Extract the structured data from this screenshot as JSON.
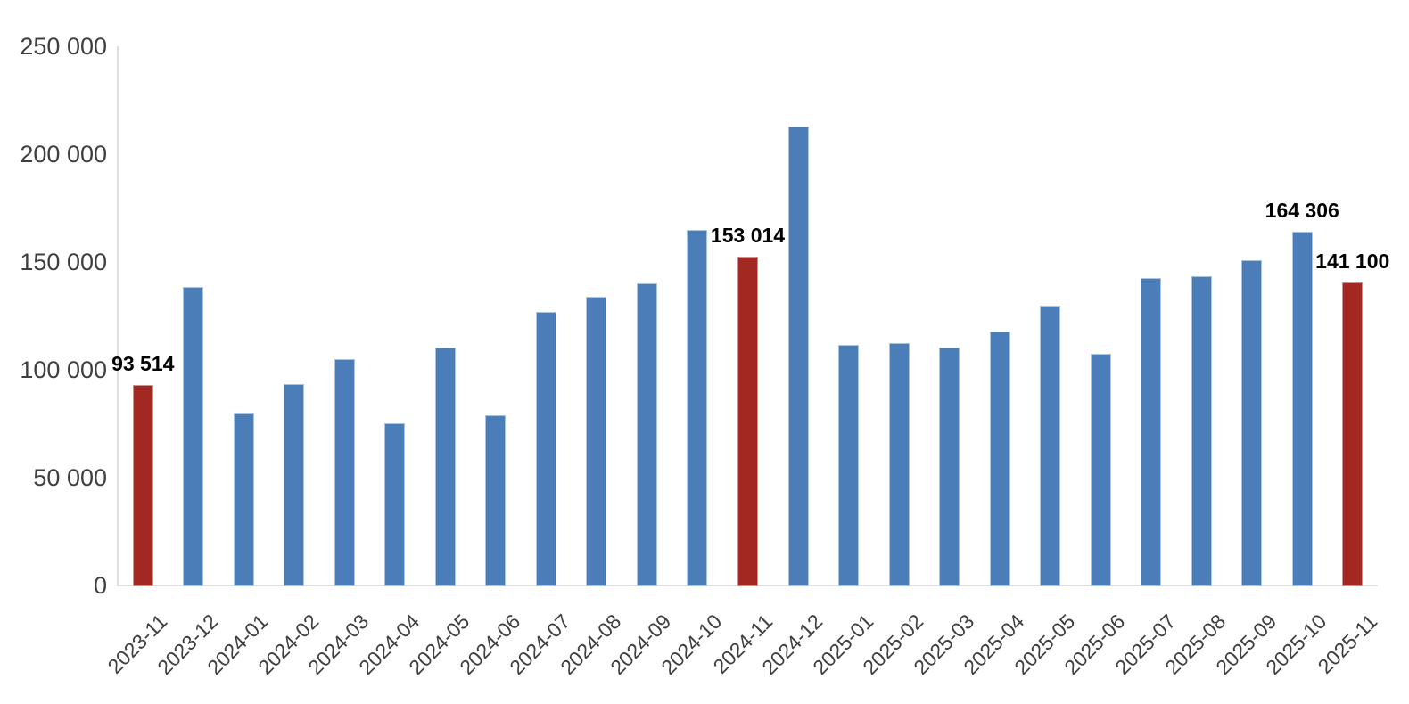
{
  "chart_data": {
    "type": "bar",
    "title": "",
    "xlabel": "",
    "ylabel": "",
    "ylim": [
      0,
      250000
    ],
    "y_tick_step": 50000,
    "y_tick_labels": [
      "250 000",
      "200 000",
      "150 000",
      "100 000",
      "50 000",
      "0"
    ],
    "grid": false,
    "legend": false,
    "categories": [
      "2023-11",
      "2023-12",
      "2024-01",
      "2024-02",
      "2024-03",
      "2024-04",
      "2024-05",
      "2024-06",
      "2024-07",
      "2024-08",
      "2024-09",
      "2024-10",
      "2024-11",
      "2024-12",
      "2025-01",
      "2025-02",
      "2025-03",
      "2025-04",
      "2025-05",
      "2025-06",
      "2025-07",
      "2025-08",
      "2025-09",
      "2025-10",
      "2025-11"
    ],
    "values": [
      93514,
      139000,
      80300,
      94000,
      105400,
      75800,
      110600,
      79500,
      127200,
      134300,
      140700,
      165400,
      153014,
      213300,
      112000,
      112800,
      110700,
      118300,
      130200,
      107900,
      142900,
      143900,
      151200,
      164306,
      141100
    ],
    "highlighted_indices": [
      0,
      12,
      24
    ],
    "data_labels": [
      {
        "index": 0,
        "text": "93 514"
      },
      {
        "index": 12,
        "text": "153 014"
      },
      {
        "index": 23,
        "text": "164 306"
      },
      {
        "index": 24,
        "text": "141 100"
      }
    ],
    "colors": {
      "bar": "#4B7DB8",
      "bar_border": "#A9C4DE",
      "highlight_bar": "#A32822",
      "highlight_bar_border": "#C99490",
      "axis_line": "#DEDEDE",
      "tick_text": "#3F3F3F",
      "data_label_text": "#000000",
      "background": "#FFFFFF"
    }
  }
}
